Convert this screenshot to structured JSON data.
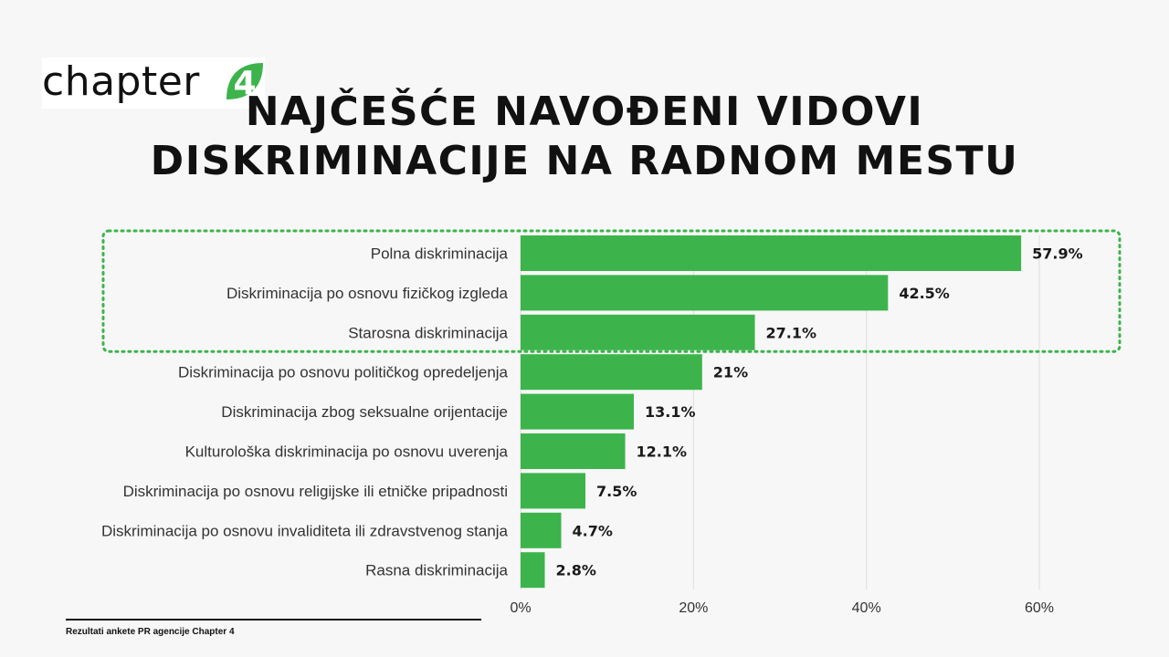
{
  "logo": {
    "text": "chapter",
    "mark": "4",
    "mark_color": "#3cb44b"
  },
  "title": {
    "line1": "NAJČEŠĆE NAVOĐENI VIDOVI",
    "line2": "DISKRIMINACIJE NA RADNOM MESTU"
  },
  "footnote": "Rezultati ankete PR agencije Chapter 4",
  "chart_data": {
    "type": "bar",
    "orientation": "horizontal",
    "categories": [
      "Polna diskriminacija",
      "Diskriminacija po osnovu fizičkog izgleda",
      "Starosna diskriminacija",
      "Diskriminacija po osnovu političkog opredeljenja",
      "Diskriminacija zbog seksualne orijentacije",
      "Kulturološka diskriminacija po osnovu uverenja",
      "Diskriminacija po osnovu religijske ili etničke pripadnosti",
      "Diskriminacija po osnovu  invaliditeta ili zdravstvenog stanja",
      "Rasna diskriminacija"
    ],
    "values": [
      57.9,
      42.5,
      27.1,
      21,
      13.1,
      12.1,
      7.5,
      4.7,
      2.8
    ],
    "value_labels": [
      "57.9%",
      "42.5%",
      "27.1%",
      "21%",
      "13.1%",
      "12.1%",
      "7.5%",
      "4.7%",
      "2.8%"
    ],
    "xlim": [
      0,
      60
    ],
    "x_ticks": [
      0,
      20,
      40,
      60
    ],
    "x_tick_labels": [
      "0%",
      "20%",
      "40%",
      "60%"
    ],
    "bar_color": "#3cb44b",
    "grid": true,
    "highlight": {
      "style": "dotted",
      "color": "#3cb44b",
      "covers_top_n": 3
    }
  }
}
